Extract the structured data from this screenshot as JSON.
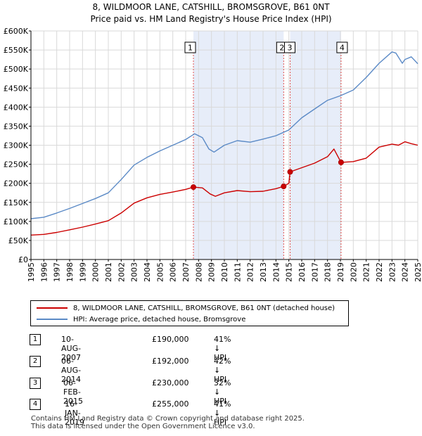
{
  "title": "8, WILDMOOR LANE, CATSHILL, BROMSGROVE, B61 0NT",
  "subtitle": "Price paid vs. HM Land Registry's House Price Index (HPI)",
  "colors": {
    "property": "#cc0000",
    "hpi": "#5b8ac6",
    "shade": "#dde6f7",
    "vline": "#e05050"
  },
  "chart_data": {
    "type": "line",
    "xlim": [
      1995.0,
      2025.0
    ],
    "ylim": [
      0,
      600000
    ],
    "yticks": [
      0,
      50000,
      100000,
      150000,
      200000,
      250000,
      300000,
      350000,
      400000,
      450000,
      500000,
      550000,
      600000
    ],
    "ytick_labels": [
      "£0",
      "£50K",
      "£100K",
      "£150K",
      "£200K",
      "£250K",
      "£300K",
      "£350K",
      "£400K",
      "£450K",
      "£500K",
      "£550K",
      "£600K"
    ],
    "xticks": [
      1995,
      1996,
      1997,
      1998,
      1999,
      2000,
      2001,
      2002,
      2003,
      2004,
      2005,
      2006,
      2007,
      2008,
      2009,
      2010,
      2011,
      2012,
      2013,
      2014,
      2015,
      2016,
      2017,
      2018,
      2019,
      2020,
      2021,
      2022,
      2023,
      2024,
      2025
    ],
    "xtick_labels": [
      "1995",
      "1996",
      "1997",
      "1998",
      "1999",
      "2000",
      "2001",
      "2002",
      "2003",
      "2004",
      "2005",
      "2006",
      "2007",
      "2008",
      "2009",
      "2010",
      "2011",
      "2012",
      "2013",
      "2014",
      "2015",
      "2016",
      "2017",
      "2018",
      "2019",
      "2020",
      "2021",
      "2022",
      "2023",
      "2024",
      "2025"
    ],
    "shaded_ranges": [
      [
        2007.6,
        2014.6
      ],
      [
        2015.1,
        2019.05
      ]
    ],
    "series": [
      {
        "name": "8, WILDMOOR LANE, CATSHILL, BROMSGROVE, B61 0NT (detached house)",
        "x": [
          1995.0,
          1996.0,
          1997.0,
          1998.0,
          1999.0,
          2000.0,
          2001.0,
          2002.0,
          2003.0,
          2004.0,
          2005.0,
          2006.0,
          2007.0,
          2007.6,
          2008.3,
          2008.9,
          2009.3,
          2010.0,
          2011.0,
          2012.0,
          2013.0,
          2014.0,
          2014.6,
          2015.0,
          2015.1,
          2016.0,
          2017.0,
          2018.0,
          2018.5,
          2019.05,
          2020.0,
          2021.0,
          2022.0,
          2023.0,
          2023.5,
          2024.0,
          2024.5,
          2025.0
        ],
        "values": [
          64000,
          66000,
          71000,
          78000,
          85000,
          93000,
          102000,
          122000,
          148000,
          162000,
          171000,
          177000,
          184000,
          190000,
          188000,
          172000,
          166000,
          175000,
          181000,
          178000,
          179000,
          186000,
          192000,
          200000,
          230000,
          241000,
          253000,
          270000,
          290000,
          255000,
          257000,
          266000,
          295000,
          303000,
          300000,
          309000,
          304000,
          300000
        ]
      },
      {
        "name": "HPI: Average price, detached house, Bromsgrove",
        "x": [
          1995.0,
          1996.0,
          1997.0,
          1998.0,
          1999.0,
          2000.0,
          2001.0,
          2002.0,
          2003.0,
          2004.0,
          2005.0,
          2006.0,
          2007.0,
          2007.7,
          2008.3,
          2008.8,
          2009.2,
          2010.0,
          2011.0,
          2012.0,
          2013.0,
          2014.0,
          2015.0,
          2016.0,
          2017.0,
          2018.0,
          2019.0,
          2020.0,
          2021.0,
          2022.0,
          2023.0,
          2023.3,
          2023.8,
          2024.0,
          2024.5,
          2025.0
        ],
        "values": [
          107000,
          111000,
          122000,
          134000,
          147000,
          160000,
          175000,
          210000,
          248000,
          268000,
          285000,
          300000,
          315000,
          330000,
          320000,
          290000,
          282000,
          300000,
          312000,
          308000,
          316000,
          325000,
          340000,
          372000,
          395000,
          418000,
          430000,
          445000,
          478000,
          515000,
          545000,
          542000,
          515000,
          525000,
          532000,
          514000
        ]
      }
    ],
    "sales": [
      {
        "label": "1",
        "x": 2007.6,
        "value": 190000
      },
      {
        "label": "2",
        "x": 2014.6,
        "value": 192000
      },
      {
        "label": "3",
        "x": 2015.1,
        "value": 230000
      },
      {
        "label": "4",
        "x": 2019.05,
        "value": 255000
      }
    ]
  },
  "legend": {
    "property": "8, WILDMOOR LANE, CATSHILL, BROMSGROVE, B61 0NT (detached house)",
    "hpi": "HPI: Average price, detached house, Bromsgrove"
  },
  "transactions": [
    {
      "num": "1",
      "date": "10-AUG-2007",
      "price": "£190,000",
      "hpi": "41% ↓ HPI"
    },
    {
      "num": "2",
      "date": "06-AUG-2014",
      "price": "£192,000",
      "hpi": "42% ↓ HPI"
    },
    {
      "num": "3",
      "date": "06-FEB-2015",
      "price": "£230,000",
      "hpi": "32% ↓ HPI"
    },
    {
      "num": "4",
      "date": "16-JAN-2019",
      "price": "£255,000",
      "hpi": "41% ↓ HPI"
    }
  ],
  "footer": {
    "line1": "Contains HM Land Registry data © Crown copyright and database right 2025.",
    "line2": "This data is licensed under the Open Government Licence v3.0."
  }
}
